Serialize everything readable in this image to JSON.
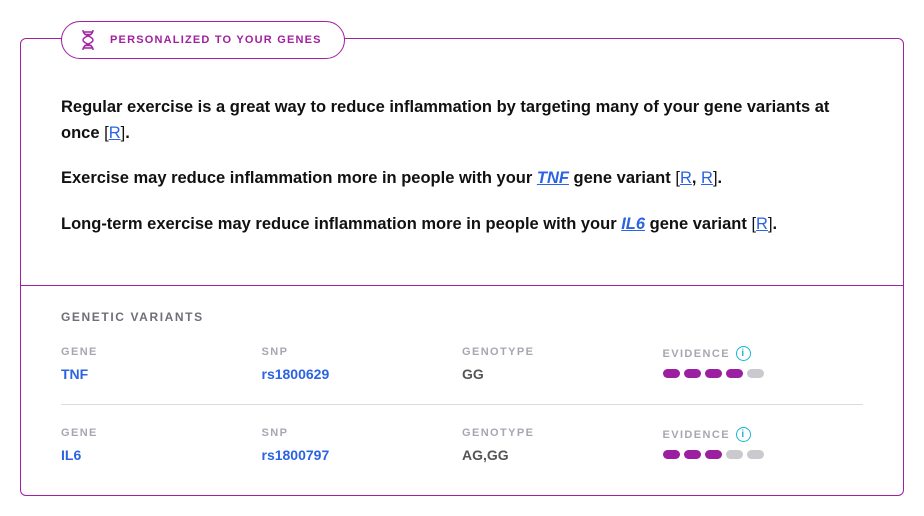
{
  "colors": {
    "border": "#a020a0",
    "badge_text": "#a020a0",
    "text": "#111111",
    "link": "#2b63e3",
    "label_gray": "#a7a7b2",
    "value_gray": "#555555",
    "row_divider": "#dcdce0",
    "info_icon": "#16b6d6",
    "dot_filled": "#9b1fa0",
    "dot_empty": "#c9c9ce",
    "background": "#ffffff"
  },
  "badge": {
    "text": "PERSONALIZED TO YOUR GENES",
    "icon_name": "dna-icon"
  },
  "statements": [
    {
      "segments": [
        {
          "type": "text",
          "value": "Regular exercise is a great way to reduce inflammation by targeting many of your gene variants at once "
        },
        {
          "type": "refgroup",
          "refs": [
            "R"
          ]
        },
        {
          "type": "text",
          "value": "."
        }
      ]
    },
    {
      "segments": [
        {
          "type": "text",
          "value": "Exercise may reduce inflammation more in people with your "
        },
        {
          "type": "gene",
          "value": "TNF"
        },
        {
          "type": "text",
          "value": " gene variant "
        },
        {
          "type": "refgroup",
          "refs": [
            "R",
            "R"
          ]
        },
        {
          "type": "text",
          "value": "."
        }
      ]
    },
    {
      "segments": [
        {
          "type": "text",
          "value": "Long-term exercise may reduce inflammation more in people with your "
        },
        {
          "type": "gene",
          "value": "IL6"
        },
        {
          "type": "text",
          "value": " gene variant "
        },
        {
          "type": "refgroup",
          "refs": [
            "R"
          ]
        },
        {
          "type": "text",
          "value": "."
        }
      ]
    }
  ],
  "variants": {
    "title": "GENETIC VARIANTS",
    "columns": {
      "gene": "GENE",
      "snp": "SNP",
      "genotype": "GENOTYPE",
      "evidence": "EVIDENCE"
    },
    "info_glyph": "i",
    "evidence_max": 5,
    "rows": [
      {
        "gene": "TNF",
        "snp": "rs1800629",
        "genotype": "GG",
        "evidence": 4
      },
      {
        "gene": "IL6",
        "snp": "rs1800797",
        "genotype": "AG,GG",
        "evidence": 3
      }
    ]
  }
}
